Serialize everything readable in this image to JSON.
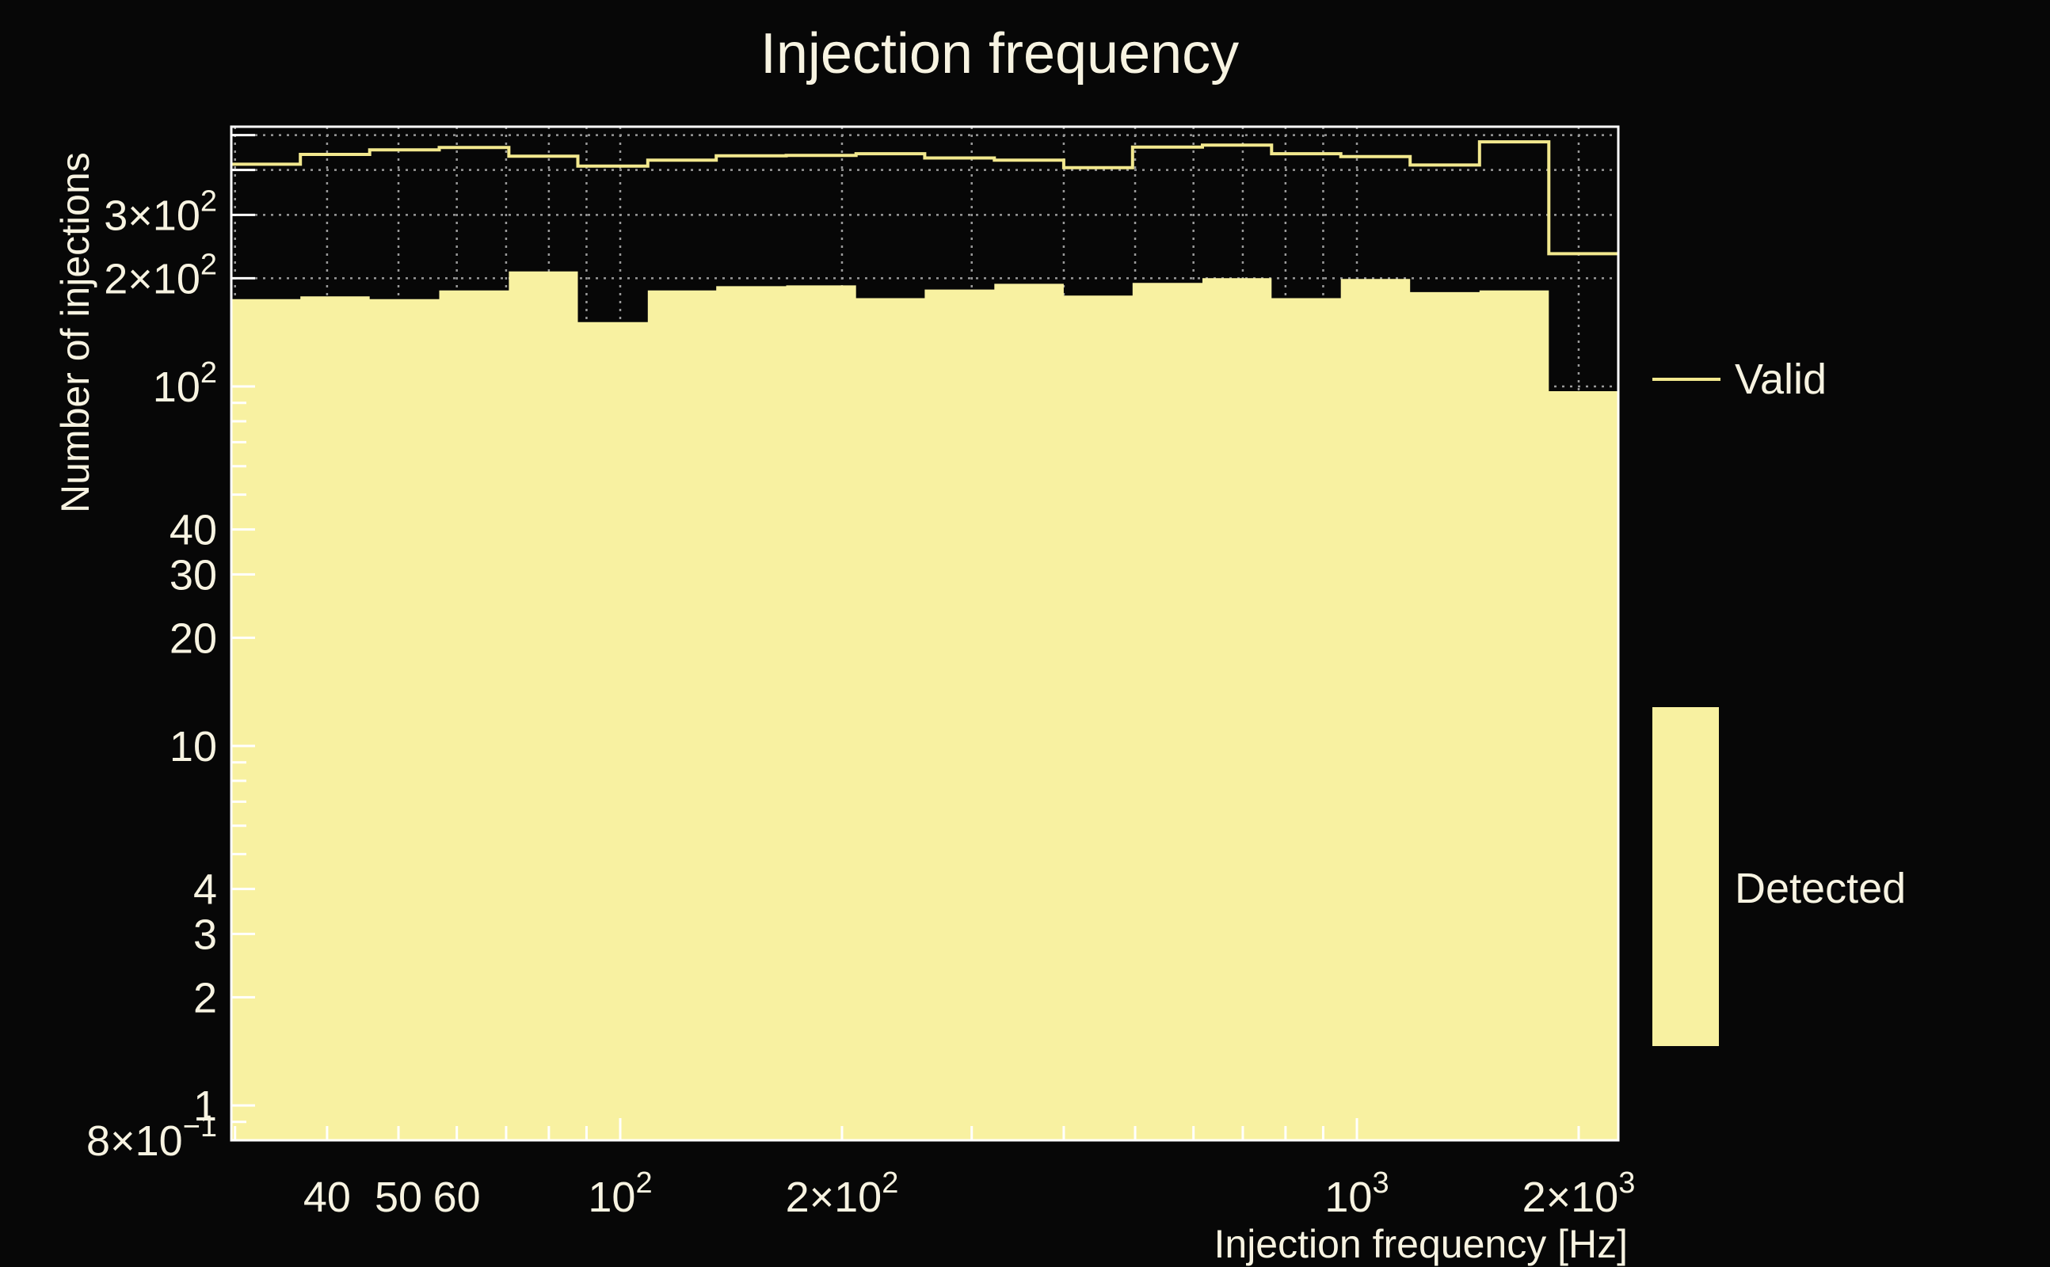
{
  "page": {
    "background": "#070707"
  },
  "title": {
    "text": "Injection frequency"
  },
  "axes": {
    "x_title": "Injection frequency [Hz]",
    "y_title": "Number of injections"
  },
  "legend": {
    "valid_label": "Valid",
    "detected_label": "Detected"
  },
  "colors": {
    "background": "#070707",
    "text": "#f7f3e1",
    "frame": "#ffffff",
    "grid": "#9a9a9a",
    "valid_line": "#f2e88e",
    "detected_fill": "#f8f1a1"
  },
  "chart_data": {
    "type": "area",
    "subtype": "log-log step histogram, two series",
    "title": "Injection frequency",
    "xlabel": "Injection frequency [Hz]",
    "ylabel": "Number of injections",
    "xscale": "log",
    "yscale": "log",
    "xlim": [
      29.7,
      2263
    ],
    "ylim": [
      0.8,
      528
    ],
    "grid_on": true,
    "legend_position": "right-outside",
    "bin_edges_hz": [
      29.7,
      36.8,
      45.7,
      56.8,
      70.6,
      87.6,
      109,
      135,
      168,
      209,
      259,
      322,
      400,
      496,
      617,
      766,
      951,
      1181,
      1467,
      1822,
      2263
    ],
    "series": [
      {
        "name": "Valid",
        "style": "step-line",
        "values": [
          415,
          442,
          455,
          462,
          437,
          410,
          426,
          438,
          439,
          444,
          432,
          426,
          406,
          463,
          469,
          444,
          436,
          413,
          479,
          234
        ]
      },
      {
        "name": "Detected",
        "style": "filled-steps",
        "values": [
          175,
          178,
          175,
          185,
          209,
          151,
          185,
          190,
          191,
          176,
          186,
          193,
          179,
          194,
          200,
          176,
          199,
          183,
          185,
          97
        ]
      }
    ],
    "grid": {
      "x_values": [
        30,
        40,
        50,
        60,
        70,
        80,
        90,
        100,
        200,
        300,
        400,
        500,
        600,
        700,
        800,
        900,
        1000,
        2000
      ],
      "y_values": [
        0.9,
        1,
        2,
        3,
        4,
        5,
        6,
        7,
        8,
        9,
        10,
        20,
        30,
        40,
        50,
        60,
        70,
        80,
        90,
        100,
        200,
        300,
        400,
        500
      ]
    },
    "x_ticks": {
      "values": [
        30,
        40,
        50,
        60,
        70,
        80,
        90,
        100,
        200,
        300,
        400,
        500,
        600,
        700,
        800,
        900,
        1000,
        2000
      ],
      "long": [
        100,
        1000
      ]
    },
    "y_ticks": {
      "values": [
        0.8,
        0.9,
        1,
        2,
        3,
        4,
        5,
        6,
        7,
        8,
        9,
        10,
        20,
        30,
        40,
        50,
        60,
        70,
        80,
        90,
        100,
        200,
        300,
        400,
        500
      ],
      "long": [
        0.8,
        1,
        2,
        3,
        4,
        10,
        20,
        30,
        40,
        100,
        200,
        300,
        400,
        500
      ]
    },
    "x_tick_labels": [
      {
        "value": 40,
        "main": "40",
        "sup": ""
      },
      {
        "value": 50,
        "main": "50",
        "sup": ""
      },
      {
        "value": 60,
        "main": "60",
        "sup": ""
      },
      {
        "value": 100,
        "main": "10",
        "sup": "2"
      },
      {
        "value": 200,
        "main": "2×10",
        "sup": "2"
      },
      {
        "value": 1000,
        "main": "10",
        "sup": "3"
      },
      {
        "value": 2000,
        "main": "2×10",
        "sup": "3"
      }
    ],
    "y_tick_labels": [
      {
        "value": 300,
        "main": "3×10",
        "sup": "2"
      },
      {
        "value": 200,
        "main": "2×10",
        "sup": "2"
      },
      {
        "value": 100,
        "main": "10",
        "sup": "2"
      },
      {
        "value": 40,
        "main": "40",
        "sup": ""
      },
      {
        "value": 30,
        "main": "30",
        "sup": ""
      },
      {
        "value": 20,
        "main": "20",
        "sup": ""
      },
      {
        "value": 10,
        "main": "10",
        "sup": ""
      },
      {
        "value": 4,
        "main": "4",
        "sup": ""
      },
      {
        "value": 3,
        "main": "3",
        "sup": ""
      },
      {
        "value": 2,
        "main": "2",
        "sup": ""
      },
      {
        "value": 1,
        "main": "1",
        "sup": ""
      },
      {
        "value": 0.8,
        "main": "8×10",
        "sup": "−1"
      }
    ]
  }
}
